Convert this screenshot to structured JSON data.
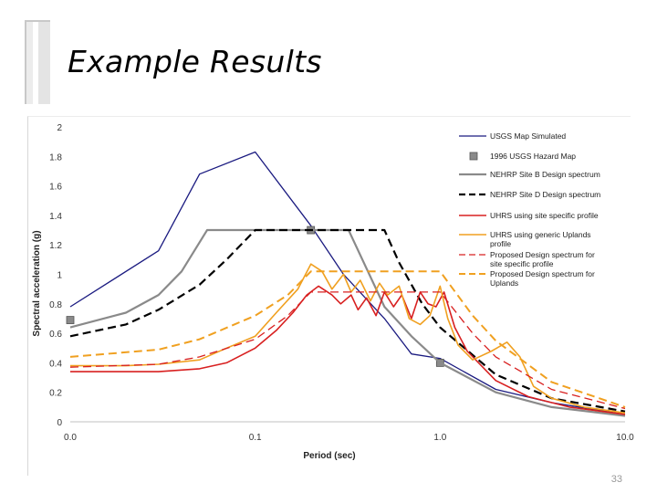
{
  "slide": {
    "title": "Example Results",
    "page_number": "33"
  },
  "chart_data": {
    "type": "line",
    "title": "",
    "xlabel": "Period (sec)",
    "ylabel": "Spectral acceleration (g)",
    "x_scale": "log",
    "xlim": [
      0.01,
      10
    ],
    "ylim": [
      0,
      2
    ],
    "x_ticks": [
      0.01,
      0.1,
      1,
      10
    ],
    "x_tick_labels": [
      "0.0",
      "0.1",
      "1.0",
      "10.0"
    ],
    "y_ticks": [
      0,
      0.2,
      0.4,
      0.6,
      0.8,
      1,
      1.2,
      1.4,
      1.6,
      1.8,
      2
    ],
    "y_tick_labels": [
      "0",
      "0.2",
      "0.4",
      "0.6",
      "0.8",
      "1",
      "1.2",
      "1.4",
      "1.6",
      "1.8",
      "2"
    ],
    "grid": false,
    "legend_position": "right",
    "series": [
      {
        "name": "USGS Map Simulated",
        "style": "solid",
        "color": "#1a1a80",
        "width": 1.3,
        "marker": "none",
        "x": [
          0.01,
          0.03,
          0.05,
          0.1,
          0.2,
          0.3,
          0.5,
          0.7,
          1.0,
          2.0,
          4.0,
          10.0
        ],
        "y": [
          0.78,
          1.16,
          1.68,
          1.83,
          1.33,
          1.0,
          0.7,
          0.46,
          0.43,
          0.22,
          0.13,
          0.05
        ]
      },
      {
        "name": "1996 USGS Hazard Map",
        "style": "none",
        "color": "#8a8a8a",
        "width": 0,
        "marker": "square",
        "x": [
          0.01,
          0.2,
          1.0
        ],
        "y": [
          0.69,
          1.3,
          0.4
        ]
      },
      {
        "name": "NEHRP Site B Design spectrum",
        "style": "solid",
        "color": "#8a8a8a",
        "width": 2.2,
        "marker": "none",
        "x": [
          0.01,
          0.02,
          0.03,
          0.04,
          0.055,
          0.1,
          0.2,
          0.32,
          0.5,
          0.7,
          1.0,
          2.0,
          4.0,
          10.0
        ],
        "y": [
          0.64,
          0.74,
          0.86,
          1.02,
          1.3,
          1.3,
          1.3,
          1.3,
          0.78,
          0.58,
          0.4,
          0.2,
          0.1,
          0.04
        ]
      },
      {
        "name": "NEHRP Site D Design spectrum",
        "style": "dash",
        "color": "#000000",
        "width": 2.2,
        "marker": "none",
        "x": [
          0.01,
          0.02,
          0.03,
          0.05,
          0.07,
          0.1,
          0.2,
          0.5,
          0.6,
          0.8,
          1.0,
          2.0,
          4.0,
          10.0
        ],
        "y": [
          0.58,
          0.66,
          0.76,
          0.93,
          1.1,
          1.3,
          1.3,
          1.3,
          1.08,
          0.8,
          0.64,
          0.32,
          0.16,
          0.07
        ]
      },
      {
        "name": "UHRS using site specific profile",
        "style": "solid",
        "color": "#d82020",
        "width": 1.6,
        "marker": "none",
        "x": [
          0.01,
          0.02,
          0.03,
          0.05,
          0.07,
          0.1,
          0.13,
          0.16,
          0.19,
          0.22,
          0.26,
          0.29,
          0.33,
          0.36,
          0.4,
          0.45,
          0.5,
          0.56,
          0.62,
          0.7,
          0.78,
          0.86,
          0.95,
          1.05,
          1.2,
          1.4,
          2.0,
          3.0,
          5.0,
          10.0
        ],
        "y": [
          0.34,
          0.34,
          0.34,
          0.36,
          0.4,
          0.5,
          0.62,
          0.74,
          0.86,
          0.92,
          0.86,
          0.8,
          0.86,
          0.76,
          0.84,
          0.72,
          0.88,
          0.78,
          0.86,
          0.7,
          0.88,
          0.8,
          0.78,
          0.88,
          0.64,
          0.48,
          0.28,
          0.17,
          0.1,
          0.05
        ]
      },
      {
        "name": "UHRS using generic Uplands profile",
        "style": "solid",
        "color": "#f0a020",
        "width": 1.6,
        "marker": "none",
        "x": [
          0.01,
          0.02,
          0.03,
          0.05,
          0.07,
          0.1,
          0.13,
          0.17,
          0.2,
          0.23,
          0.26,
          0.3,
          0.33,
          0.37,
          0.42,
          0.47,
          0.52,
          0.6,
          0.68,
          0.78,
          0.88,
          1.0,
          1.1,
          1.25,
          1.5,
          1.9,
          2.3,
          2.7,
          3.2,
          4.0,
          6.0,
          10.0
        ],
        "y": [
          0.38,
          0.38,
          0.39,
          0.42,
          0.5,
          0.58,
          0.74,
          0.9,
          1.07,
          1.02,
          0.9,
          1.0,
          0.88,
          0.96,
          0.82,
          0.94,
          0.86,
          0.92,
          0.7,
          0.66,
          0.72,
          0.92,
          0.7,
          0.52,
          0.42,
          0.48,
          0.54,
          0.44,
          0.24,
          0.16,
          0.1,
          0.06
        ]
      },
      {
        "name": "Proposed Design spectrum for site specific profile",
        "style": "dash",
        "color": "#d82020",
        "width": 1.3,
        "marker": "none",
        "x": [
          0.01,
          0.03,
          0.05,
          0.1,
          0.15,
          0.2,
          0.5,
          1.0,
          1.5,
          2.0,
          4.0,
          10.0
        ],
        "y": [
          0.37,
          0.39,
          0.44,
          0.56,
          0.72,
          0.88,
          0.88,
          0.88,
          0.6,
          0.44,
          0.22,
          0.09
        ]
      },
      {
        "name": "Proposed Design spectrum for Uplands",
        "style": "dash",
        "color": "#f0a020",
        "width": 2.0,
        "marker": "none",
        "x": [
          0.01,
          0.03,
          0.05,
          0.1,
          0.15,
          0.2,
          0.5,
          1.0,
          1.5,
          2.0,
          4.0,
          10.0
        ],
        "y": [
          0.44,
          0.49,
          0.56,
          0.72,
          0.86,
          1.02,
          1.02,
          1.02,
          0.72,
          0.55,
          0.27,
          0.1
        ]
      }
    ],
    "legend_labels": [
      [
        "USGS Map Simulated"
      ],
      [
        "1996 USGS Hazard Map"
      ],
      [
        "NEHRP Site B Design spectrum"
      ],
      [
        "NEHRP Site D Design spectrum"
      ],
      [
        "UHRS using site specific profile"
      ],
      [
        "UHRS using generic Uplands",
        "profile"
      ],
      [
        "Proposed Design spectrum for",
        "site specific profile"
      ],
      [
        "Proposed Design spectrum for",
        "Uplands"
      ]
    ]
  }
}
